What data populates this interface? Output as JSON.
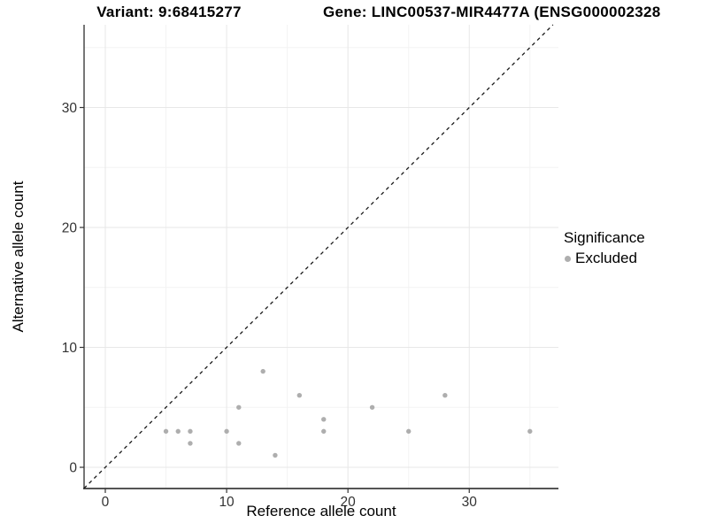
{
  "chart_data": {
    "type": "scatter",
    "title_left": "Variant: 9:68415277",
    "title_right": "Gene: LINC00537-MIR4477A (ENSG000002328",
    "xlabel": "Reference allele count",
    "ylabel": "Alternative allele count",
    "xlim": [
      -1.75,
      37.35
    ],
    "ylim": [
      -1.77,
      36.9
    ],
    "x_ticks": [
      0,
      10,
      20,
      30
    ],
    "y_ticks": [
      0,
      10,
      20,
      30
    ],
    "minor_grid": [
      5,
      15,
      25,
      35
    ],
    "grid": true,
    "identity_line": {
      "equation": "y = x",
      "style": "dashed",
      "color": "#1a1a1a"
    },
    "series": [
      {
        "name": "Excluded",
        "marker": "circle",
        "color": "#aeaeae",
        "points": [
          [
            5,
            3
          ],
          [
            6,
            3
          ],
          [
            7,
            2
          ],
          [
            7,
            3
          ],
          [
            10,
            3
          ],
          [
            11,
            2
          ],
          [
            11,
            5
          ],
          [
            13,
            8
          ],
          [
            14,
            1
          ],
          [
            16,
            6
          ],
          [
            18,
            3
          ],
          [
            18,
            4
          ],
          [
            22,
            5
          ],
          [
            25,
            3
          ],
          [
            28,
            6
          ],
          [
            35,
            3
          ]
        ]
      }
    ],
    "legend": {
      "title": "Significance",
      "position": "right",
      "entries": [
        {
          "label": "Excluded",
          "color": "#aeaeae"
        }
      ]
    }
  },
  "colors": {
    "background": "#ffffff",
    "grid_major": "#e7e7e7",
    "grid_minor": "#f3f3f3",
    "axis_line": "#3c3c3c",
    "tick_mark": "#333333",
    "tick_label": "#333333"
  }
}
